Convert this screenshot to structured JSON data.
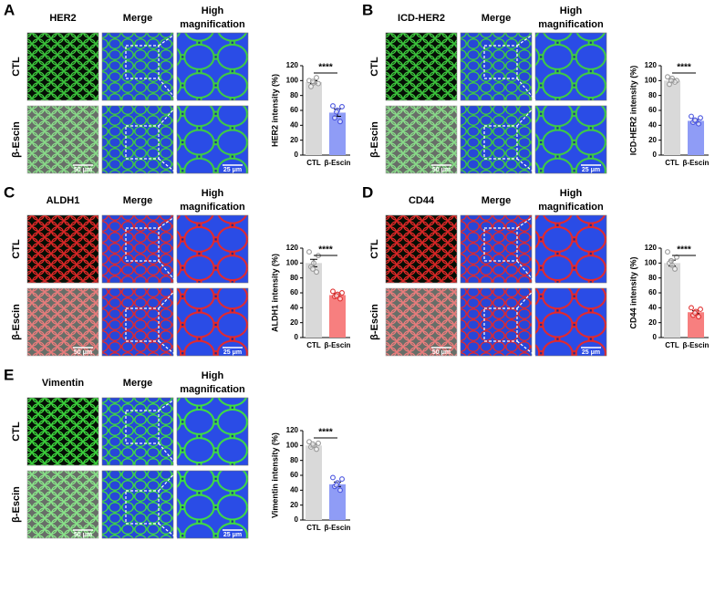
{
  "panels": [
    {
      "letter": "A",
      "stain": "HER2",
      "merge": "Merge",
      "high_mag": [
        "High",
        "magnification"
      ],
      "rows": [
        "CTL",
        "β-Escin"
      ],
      "scale_bars": [
        "50 μm",
        "25 μm"
      ],
      "color": "#3fcf3f"
    },
    {
      "letter": "B",
      "stain": "ICD-HER2",
      "merge": "Merge",
      "high_mag": [
        "High",
        "magnification"
      ],
      "rows": [
        "CTL",
        "β-Escin"
      ],
      "scale_bars": [
        "50 μm",
        "25 μm"
      ],
      "color": "#3fcf3f"
    },
    {
      "letter": "C",
      "stain": "ALDH1",
      "merge": "Merge",
      "high_mag": [
        "High",
        "magnification"
      ],
      "rows": [
        "CTL",
        "β-Escin"
      ],
      "scale_bars": [
        "50 μm",
        "25 μm"
      ],
      "color": "#e82828"
    },
    {
      "letter": "D",
      "stain": "CD44",
      "merge": "Merge",
      "high_mag": [
        "High",
        "magnification"
      ],
      "rows": [
        "CTL",
        "β-Escin"
      ],
      "scale_bars": [
        "50 μm",
        "25 μm"
      ],
      "color": "#e82828"
    },
    {
      "letter": "E",
      "stain": "Vimentin",
      "merge": "Merge",
      "high_mag": [
        "High",
        "magnification"
      ],
      "rows": [
        "CTL",
        "β-Escin"
      ],
      "scale_bars": [
        "50 μm",
        "25 μm"
      ],
      "color": "#3fdf3f"
    }
  ],
  "chart_data": [
    {
      "type": "bar",
      "ylabel": "HER2 intensity (%)",
      "categories": [
        "CTL",
        "β-Escin"
      ],
      "values": [
        98,
        57
      ],
      "errors": [
        2,
        5
      ],
      "colors": [
        "#d9d9d9",
        "#8f9cf6"
      ],
      "point_colors": [
        "#999999",
        "#4a55e0"
      ],
      "points": [
        [
          100,
          96,
          92,
          104,
          97,
          99
        ],
        [
          66,
          65,
          50,
          45,
          60,
          58
        ]
      ],
      "significance": "****",
      "ylim": [
        0,
        120
      ],
      "yticks": [
        0,
        20,
        40,
        60,
        80,
        100,
        120
      ]
    },
    {
      "type": "bar",
      "ylabel": "ICD-HER2 intensity (%)",
      "categories": [
        "CTL",
        "β-Escin"
      ],
      "values": [
        100,
        46
      ],
      "errors": [
        2,
        2
      ],
      "colors": [
        "#d9d9d9",
        "#8f9cf6"
      ],
      "point_colors": [
        "#999999",
        "#4a55e0"
      ],
      "points": [
        [
          105,
          100,
          95,
          98,
          103,
          100
        ],
        [
          52,
          50,
          44,
          42,
          46,
          47
        ]
      ],
      "significance": "****",
      "ylim": [
        0,
        120
      ],
      "yticks": [
        0,
        20,
        40,
        60,
        80,
        100,
        120
      ]
    },
    {
      "type": "bar",
      "ylabel": "ALDH1 intensity (%)",
      "categories": [
        "CTL",
        "β-Escin"
      ],
      "values": [
        100,
        57
      ],
      "errors": [
        5,
        2
      ],
      "colors": [
        "#d9d9d9",
        "#f77f7f"
      ],
      "point_colors": [
        "#999999",
        "#e03030"
      ],
      "points": [
        [
          115,
          110,
          95,
          88,
          100,
          92
        ],
        [
          62,
          60,
          55,
          52,
          58,
          56
        ]
      ],
      "significance": "****",
      "ylim": [
        0,
        120
      ],
      "yticks": [
        0,
        20,
        40,
        60,
        80,
        100,
        120
      ]
    },
    {
      "type": "bar",
      "ylabel": "CD44 intensity (%)",
      "categories": [
        "CTL",
        "β-Escin"
      ],
      "values": [
        100,
        34
      ],
      "errors": [
        4,
        2
      ],
      "colors": [
        "#d9d9d9",
        "#f77f7f"
      ],
      "point_colors": [
        "#999999",
        "#e03030"
      ],
      "points": [
        [
          115,
          108,
          100,
          92,
          97,
          103
        ],
        [
          40,
          38,
          30,
          28,
          35,
          33
        ]
      ],
      "significance": "****",
      "ylim": [
        0,
        120
      ],
      "yticks": [
        0,
        20,
        40,
        60,
        80,
        100,
        120
      ]
    },
    {
      "type": "bar",
      "ylabel": "Vimentin intensity (%)",
      "categories": [
        "CTL",
        "β-Escin"
      ],
      "values": [
        100,
        48
      ],
      "errors": [
        2,
        3
      ],
      "colors": [
        "#d9d9d9",
        "#8f9cf6"
      ],
      "point_colors": [
        "#999999",
        "#4a55e0"
      ],
      "points": [
        [
          105,
          103,
          98,
          95,
          100,
          102
        ],
        [
          57,
          55,
          45,
          40,
          50,
          47
        ]
      ],
      "significance": "****",
      "ylim": [
        0,
        120
      ],
      "yticks": [
        0,
        20,
        40,
        60,
        80,
        100,
        120
      ]
    }
  ]
}
